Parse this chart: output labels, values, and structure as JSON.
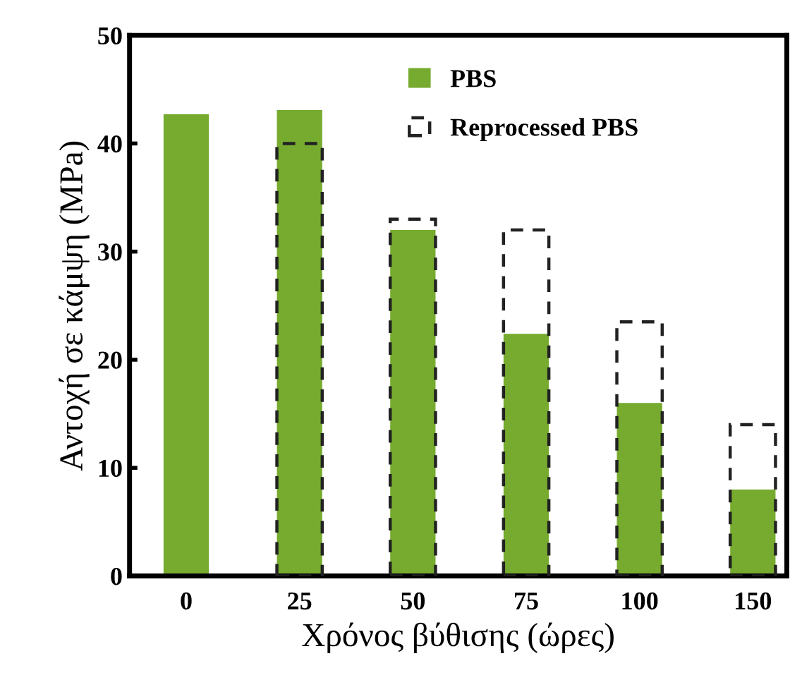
{
  "chart_data": {
    "type": "bar",
    "xlabel": "Χρόνος βύθισης (ώρες)",
    "ylabel": "Αντοχή σε κάμψη (MPa)",
    "categories": [
      "0",
      "25",
      "50",
      "75",
      "100",
      "150"
    ],
    "series": [
      {
        "name": "PBS",
        "color": "#76ab2f",
        "values": [
          42.7,
          43.1,
          32,
          22.4,
          16,
          8
        ]
      },
      {
        "name": "Reprocessed PBS",
        "color": "#222222",
        "line_style": "dashed",
        "values": [
          null,
          40,
          33,
          32,
          23.5,
          14
        ]
      }
    ],
    "ylim": [
      0,
      50
    ],
    "yticks": [
      0,
      10,
      20,
      30,
      40,
      50
    ],
    "grid": false,
    "legend": "top"
  }
}
